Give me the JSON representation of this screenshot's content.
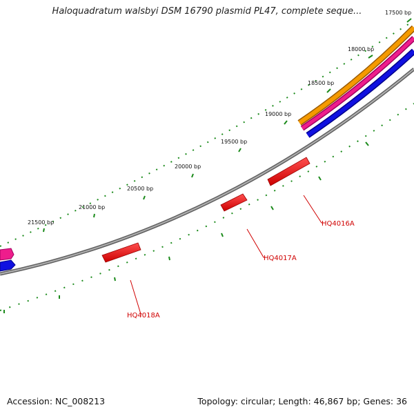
{
  "title": "Haloquadratum walsbyi DSM 16790 plasmid PL47, complete seque...",
  "footer": {
    "accession": "Accession: NC_008213",
    "summary": "Topology: circular; Length: 46,867 bp; Genes: 36"
  },
  "bp_labels": [
    "17500 bp",
    "18000 bp",
    "18500 bp",
    "19000 bp",
    "19500 bp",
    "20000 bp",
    "20500 bp",
    "21000 bp",
    "21500 bp"
  ],
  "genes": [
    {
      "name": "HQ4016A",
      "color": "#e00000"
    },
    {
      "name": "HQ4017A",
      "color": "#e00000"
    },
    {
      "name": "HQ4018A",
      "color": "#e00000"
    }
  ],
  "colors": {
    "backbone": "#808080",
    "tick": "#1a8a1a",
    "orange_track": "#f59a00",
    "pink_track": "#ee1d8c",
    "blue_track": "#1010e0"
  }
}
